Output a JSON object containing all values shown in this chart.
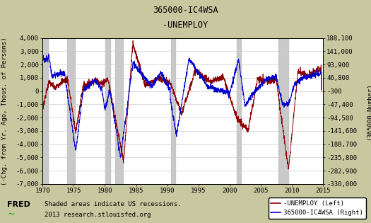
{
  "title_line1": "365000-IC4WSA",
  "title_line2": "-UNEMPLOY",
  "ylabel_left": "(-Chg. from Yr. Ago, Thous. of Persons)",
  "ylabel_right": "(365000-Number)",
  "xlim": [
    1970,
    2015
  ],
  "ylim_left": [
    -7000,
    4000
  ],
  "ylim_right": [
    -330000,
    188100
  ],
  "xticks": [
    1970,
    1975,
    1980,
    1985,
    1990,
    1995,
    2000,
    2005,
    2010,
    2015
  ],
  "yticks_left": [
    -7000,
    -6000,
    -5000,
    -4000,
    -3000,
    -2000,
    -1000,
    0,
    1000,
    2000,
    3000,
    4000
  ],
  "ytick_labels_left": [
    "-7,000",
    "-6,000",
    "-5,000",
    "-4,000",
    "-3,000",
    "-2,000",
    "-1,000",
    "0",
    "1,000",
    "2,000",
    "3,000",
    "4,000"
  ],
  "yticks_right": [
    -330000,
    -282900,
    -235800,
    -188700,
    -141600,
    -94500,
    -47400,
    -300,
    46800,
    93900,
    141000,
    188100
  ],
  "ytick_labels_right": [
    "-330,000",
    "-282,900",
    "-235,800",
    "-188,700",
    "-141,600",
    "-94,500",
    "-47,400",
    "-300",
    "46,800",
    "93,900",
    "141,000",
    "188,100"
  ],
  "recession_bands": [
    [
      1969.9,
      1970.9
    ],
    [
      1973.9,
      1975.2
    ],
    [
      1980.1,
      1980.8
    ],
    [
      1981.6,
      1982.9
    ],
    [
      1990.6,
      1991.3
    ],
    [
      2001.2,
      2001.9
    ],
    [
      2007.9,
      2009.5
    ]
  ],
  "background_color": "#c8c8a0",
  "plot_bg_color": "#ffffff",
  "grid_color": "#cccccc",
  "recession_color": "#c0c0c0",
  "unemploy_color": "#8b0000",
  "ic4wsa_color": "#0000cd",
  "legend_text1": "-UNEMPLOY (Left)",
  "legend_text2": "365000-IC4WSA (Right)",
  "footer_text1": "Shaded areas indicate US recessions.",
  "footer_text2": "2013 research.stlouisfed.org",
  "title_fontsize": 8.5,
  "axis_label_fontsize": 6.5,
  "tick_fontsize": 6.5,
  "legend_fontsize": 6.5,
  "footer_fontsize": 6.5
}
